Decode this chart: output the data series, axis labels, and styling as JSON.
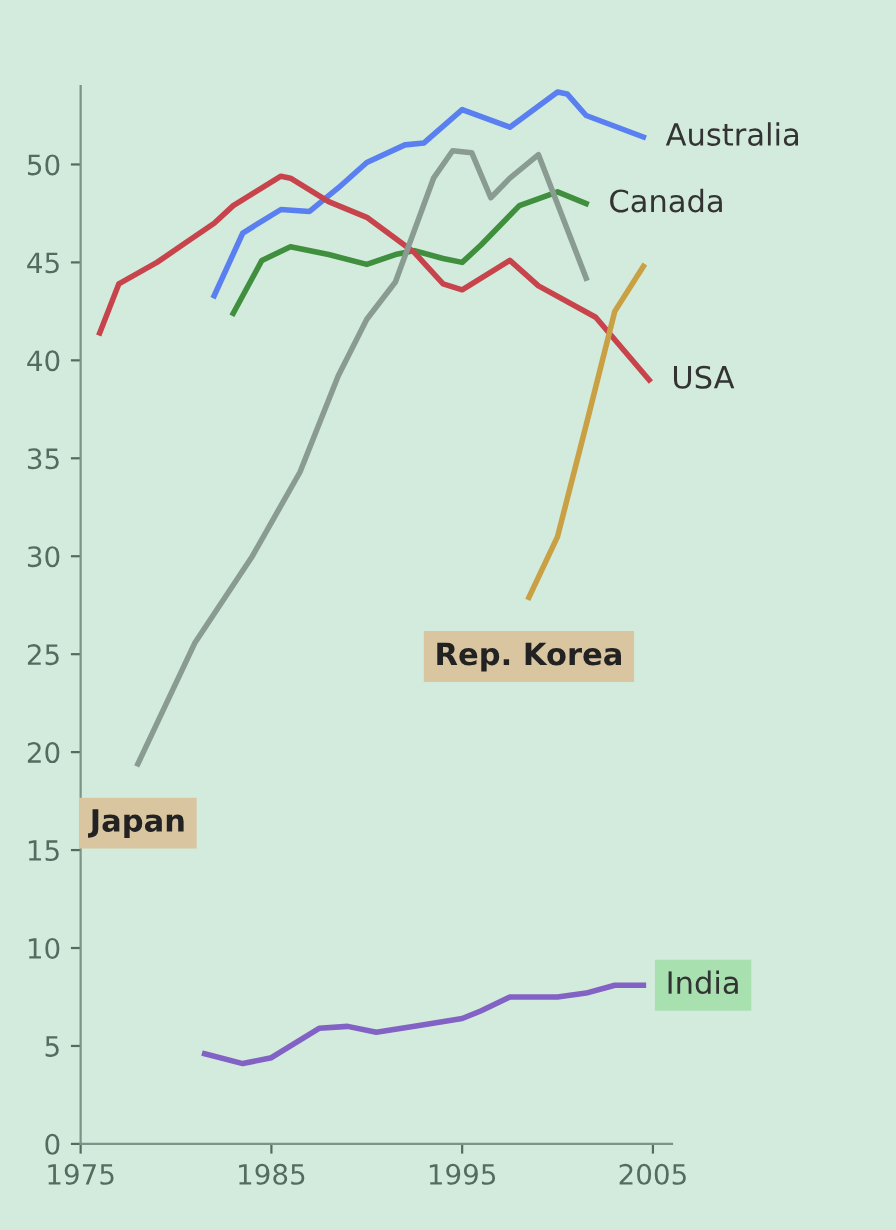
{
  "chart_data": {
    "type": "line",
    "xlim": [
      1975,
      2006
    ],
    "xticks": [
      1975,
      1985,
      1995,
      2005
    ],
    "ylim": [
      0,
      54
    ],
    "yticks": [
      0,
      5,
      10,
      15,
      20,
      25,
      30,
      35,
      40,
      45,
      50
    ],
    "grid": false,
    "legend": false,
    "marker": "none",
    "line_style": "solid",
    "series": [
      {
        "name": "Australia",
        "color": "#5a7ff0",
        "x": [
          1982,
          1983.5,
          1985.5,
          1987,
          1988.5,
          1990,
          1992,
          1993,
          1995,
          1997.5,
          2000,
          2000.5,
          2001.5,
          2004.5
        ],
        "values": [
          43.3,
          46.5,
          47.7,
          47.6,
          48.8,
          50.1,
          51.0,
          51.1,
          52.8,
          51.9,
          53.7,
          53.6,
          52.5,
          51.4
        ]
      },
      {
        "name": "Canada",
        "color": "#3f8f3f",
        "x": [
          1983,
          1984.5,
          1986,
          1988,
          1990,
          1991.5,
          1992.5,
          1994,
          1995,
          1996,
          1998,
          2000,
          2001.5
        ],
        "values": [
          42.4,
          45.1,
          45.8,
          45.4,
          44.9,
          45.4,
          45.6,
          45.2,
          45.0,
          45.9,
          47.9,
          48.6,
          48.0
        ]
      },
      {
        "name": "USA",
        "color": "#c8444c",
        "x": [
          1976,
          1977,
          1979,
          1980.5,
          1982,
          1983,
          1985.5,
          1986,
          1988,
          1990,
          1992.5,
          1994,
          1995,
          1997.5,
          1999,
          2002,
          2004.8
        ],
        "values": [
          41.4,
          43.9,
          45.0,
          46.0,
          47.0,
          47.9,
          49.4,
          49.3,
          48.1,
          47.3,
          45.5,
          43.9,
          43.6,
          45.1,
          43.8,
          42.2,
          39.0
        ]
      },
      {
        "name": "Japan",
        "color": "#8a9c92",
        "x": [
          1978,
          1981,
          1984,
          1986.5,
          1988.5,
          1990,
          1991.5,
          1993.5,
          1994.5,
          1995.5,
          1996.5,
          1997.5,
          1999,
          2001.5
        ],
        "values": [
          19.4,
          25.6,
          30.0,
          34.3,
          39.2,
          42.1,
          44.0,
          49.3,
          50.7,
          50.6,
          48.3,
          49.3,
          50.5,
          44.2
        ]
      },
      {
        "name": "Rep. Korea",
        "color": "#c9a044",
        "x": [
          1998.5,
          2000,
          2001.5,
          2003,
          2004.5
        ],
        "values": [
          27.9,
          31.0,
          36.7,
          42.5,
          44.8
        ]
      },
      {
        "name": "India",
        "color": "#8262c4",
        "x": [
          1981.5,
          1983.5,
          1985,
          1987.5,
          1989,
          1990.5,
          1992.5,
          1995,
          1996,
          1997.5,
          2000,
          2001.5,
          2003,
          2004.5
        ],
        "values": [
          4.6,
          4.1,
          4.4,
          5.9,
          6.0,
          5.7,
          6.0,
          6.4,
          6.8,
          7.5,
          7.5,
          7.7,
          8.1,
          8.1
        ]
      }
    ]
  }
}
